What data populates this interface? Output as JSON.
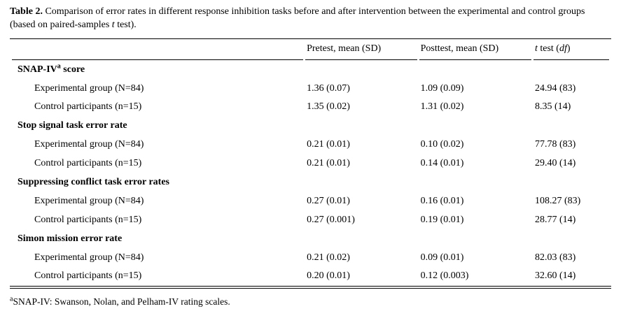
{
  "colors": {
    "text": "#000000",
    "background": "#ffffff",
    "rule": "#000000"
  },
  "caption": {
    "label": "Table 2.",
    "body": "  Comparison of error rates in different response inhibition tasks before and after intervention between the experimental and control groups (based on paired-samples ",
    "italic_t": "t",
    "tail": " test)."
  },
  "table": {
    "columns": {
      "stub": "",
      "pretest": "Pretest, mean (SD)",
      "posttest": "Posttest, mean (SD)",
      "ttest_t": "t",
      "ttest_mid": " test (",
      "ttest_df": "df",
      "ttest_close": ")"
    },
    "sections": [
      {
        "title_pre": "SNAP-IV",
        "title_sup": "a",
        "title_post": " score",
        "rows": [
          {
            "label": "Experimental group (N=84)",
            "pretest": "1.36 (0.07)",
            "posttest": "1.09 (0.09)",
            "ttest": "24.94 (83)"
          },
          {
            "label": "Control participants (n=15)",
            "pretest": "1.35 (0.02)",
            "posttest": "1.31 (0.02)",
            "ttest": "8.35 (14)"
          }
        ]
      },
      {
        "title_pre": "Stop signal task error rate",
        "title_sup": "",
        "title_post": "",
        "rows": [
          {
            "label": "Experimental group (N=84)",
            "pretest": "0.21 (0.01)",
            "posttest": "0.10 (0.02)",
            "ttest": "77.78 (83)"
          },
          {
            "label": "Control participants (n=15)",
            "pretest": "0.21 (0.01)",
            "posttest": "0.14 (0.01)",
            "ttest": "29.40 (14)"
          }
        ]
      },
      {
        "title_pre": "Suppressing conflict task error rates",
        "title_sup": "",
        "title_post": "",
        "rows": [
          {
            "label": "Experimental group (N=84)",
            "pretest": "0.27 (0.01)",
            "posttest": "0.16 (0.01)",
            "ttest": "108.27 (83)"
          },
          {
            "label": "Control participants (n=15)",
            "pretest": "0.27 (0.001)",
            "posttest": "0.19 (0.01)",
            "ttest": "28.77 (14)"
          }
        ]
      },
      {
        "title_pre": "Simon mission error rate",
        "title_sup": "",
        "title_post": "",
        "rows": [
          {
            "label": "Experimental group (N=84)",
            "pretest": "0.21 (0.02)",
            "posttest": "0.09 (0.01)",
            "ttest": "82.03 (83)"
          },
          {
            "label": "Control participants (n=15)",
            "pretest": "0.20 (0.01)",
            "posttest": "0.12 (0.003)",
            "ttest": "32.60 (14)"
          }
        ]
      }
    ]
  },
  "footnote": {
    "sup": "a",
    "text": "SNAP-IV: Swanson, Nolan, and Pelham-IV rating scales."
  }
}
